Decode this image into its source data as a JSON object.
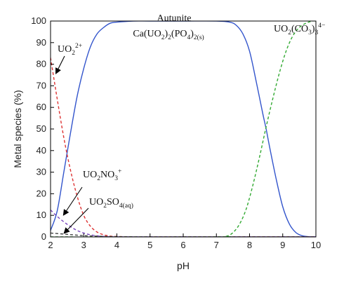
{
  "chart_data": {
    "type": "line",
    "xlabel": "pH",
    "ylabel": "Metal species (%)",
    "xlim": [
      2,
      10
    ],
    "ylim": [
      0,
      100
    ],
    "xticks": [
      2,
      3,
      4,
      5,
      6,
      7,
      8,
      9,
      10
    ],
    "yticks": [
      0,
      10,
      20,
      30,
      40,
      50,
      60,
      70,
      80,
      90,
      100
    ],
    "grid": false,
    "series": [
      {
        "name": "Autunite Ca(UO2)2(PO4)2(s)",
        "color": "#3355cc",
        "style": "solid",
        "x": [
          2.0,
          2.2,
          2.4,
          2.6,
          2.8,
          3.0,
          3.2,
          3.4,
          3.6,
          3.8,
          4.0,
          4.5,
          5.0,
          6.0,
          7.0,
          7.4,
          7.6,
          7.8,
          8.0,
          8.2,
          8.4,
          8.5,
          8.6,
          8.8,
          9.0,
          9.2,
          9.4,
          9.6,
          9.8,
          10.0
        ],
        "y": [
          3,
          12,
          30,
          48,
          65,
          78,
          88,
          94,
          97,
          99,
          99.5,
          100,
          100,
          100,
          100,
          99.5,
          98,
          94,
          86,
          72,
          57,
          50,
          42,
          27,
          14,
          6,
          2,
          0.5,
          0.1,
          0
        ]
      },
      {
        "name": "UO2^2+",
        "color": "#dd3333",
        "style": "dashed",
        "x": [
          2.0,
          2.2,
          2.4,
          2.6,
          2.8,
          3.0,
          3.2,
          3.4,
          3.6,
          3.8,
          4.0,
          4.5,
          5.0,
          6.0,
          7.0,
          8.0,
          9.0,
          10.0
        ],
        "y": [
          83,
          64,
          46,
          31,
          19,
          10,
          5,
          2.3,
          1,
          0.4,
          0.2,
          0,
          0,
          0,
          0,
          0,
          0,
          0
        ]
      },
      {
        "name": "UO2NO3^+",
        "color": "#7744bb",
        "style": "dashed",
        "x": [
          2.0,
          2.2,
          2.4,
          2.6,
          2.8,
          3.0,
          3.2,
          3.4,
          3.6,
          3.8,
          4.0,
          5.0,
          6.0,
          7.0,
          8.0,
          9.0,
          10.0
        ],
        "y": [
          12.5,
          9.5,
          7,
          4.8,
          3,
          1.8,
          1,
          0.5,
          0.25,
          0.1,
          0.05,
          0.05,
          0.05,
          0.05,
          0.05,
          0.05,
          0.05
        ]
      },
      {
        "name": "UO2SO4(aq)",
        "color": "#444444",
        "style": "dashed",
        "x": [
          2.0,
          2.5,
          3.0,
          3.5,
          4.0,
          5.0,
          6.0,
          7.0,
          8.0,
          9.0,
          10.0
        ],
        "y": [
          1.8,
          1.2,
          0.6,
          0.3,
          0.1,
          0,
          0,
          0,
          0,
          0,
          0
        ]
      },
      {
        "name": "UO2(CO3)3^4-",
        "color": "#33aa33",
        "style": "dashed",
        "x": [
          2.0,
          7.0,
          7.3,
          7.5,
          7.7,
          7.9,
          8.1,
          8.3,
          8.5,
          8.7,
          8.9,
          9.1,
          9.3,
          9.5,
          9.7,
          9.9,
          10.0
        ],
        "y": [
          0,
          0,
          0.3,
          2,
          6,
          13,
          24,
          37,
          51,
          64,
          76,
          86,
          93,
          97,
          99,
          100,
          100
        ]
      }
    ],
    "annotations": [
      {
        "id": "autunite",
        "parts": [
          [
            "t",
            "Autunite"
          ]
        ]
      },
      {
        "id": "autunite_formula",
        "parts": [
          [
            "t",
            "Ca(UO"
          ],
          [
            "sub",
            "2"
          ],
          [
            "t",
            ")"
          ],
          [
            "sub",
            "2"
          ],
          [
            "t",
            "(PO"
          ],
          [
            "sub",
            "4"
          ],
          [
            "t",
            ")"
          ],
          [
            "sub",
            "2(s)"
          ]
        ]
      },
      {
        "id": "carbonate",
        "parts": [
          [
            "t",
            "UO"
          ],
          [
            "sub",
            "2"
          ],
          [
            "t",
            "(CO"
          ],
          [
            "sub",
            "3"
          ],
          [
            "t",
            ")"
          ],
          [
            "sub",
            "3"
          ],
          [
            "sup",
            "4−"
          ]
        ]
      },
      {
        "id": "uranyl",
        "parts": [
          [
            "t",
            "UO"
          ],
          [
            "sub",
            "2"
          ],
          [
            "sup",
            "2+"
          ]
        ]
      },
      {
        "id": "nitrate",
        "parts": [
          [
            "t",
            "UO"
          ],
          [
            "sub",
            "2"
          ],
          [
            "t",
            "NO"
          ],
          [
            "sub",
            "3"
          ],
          [
            "sup",
            "+"
          ]
        ]
      },
      {
        "id": "sulfate",
        "parts": [
          [
            "t",
            "UO"
          ],
          [
            "sub",
            "2"
          ],
          [
            "t",
            "SO"
          ],
          [
            "sub",
            "4(aq)"
          ]
        ]
      }
    ]
  }
}
